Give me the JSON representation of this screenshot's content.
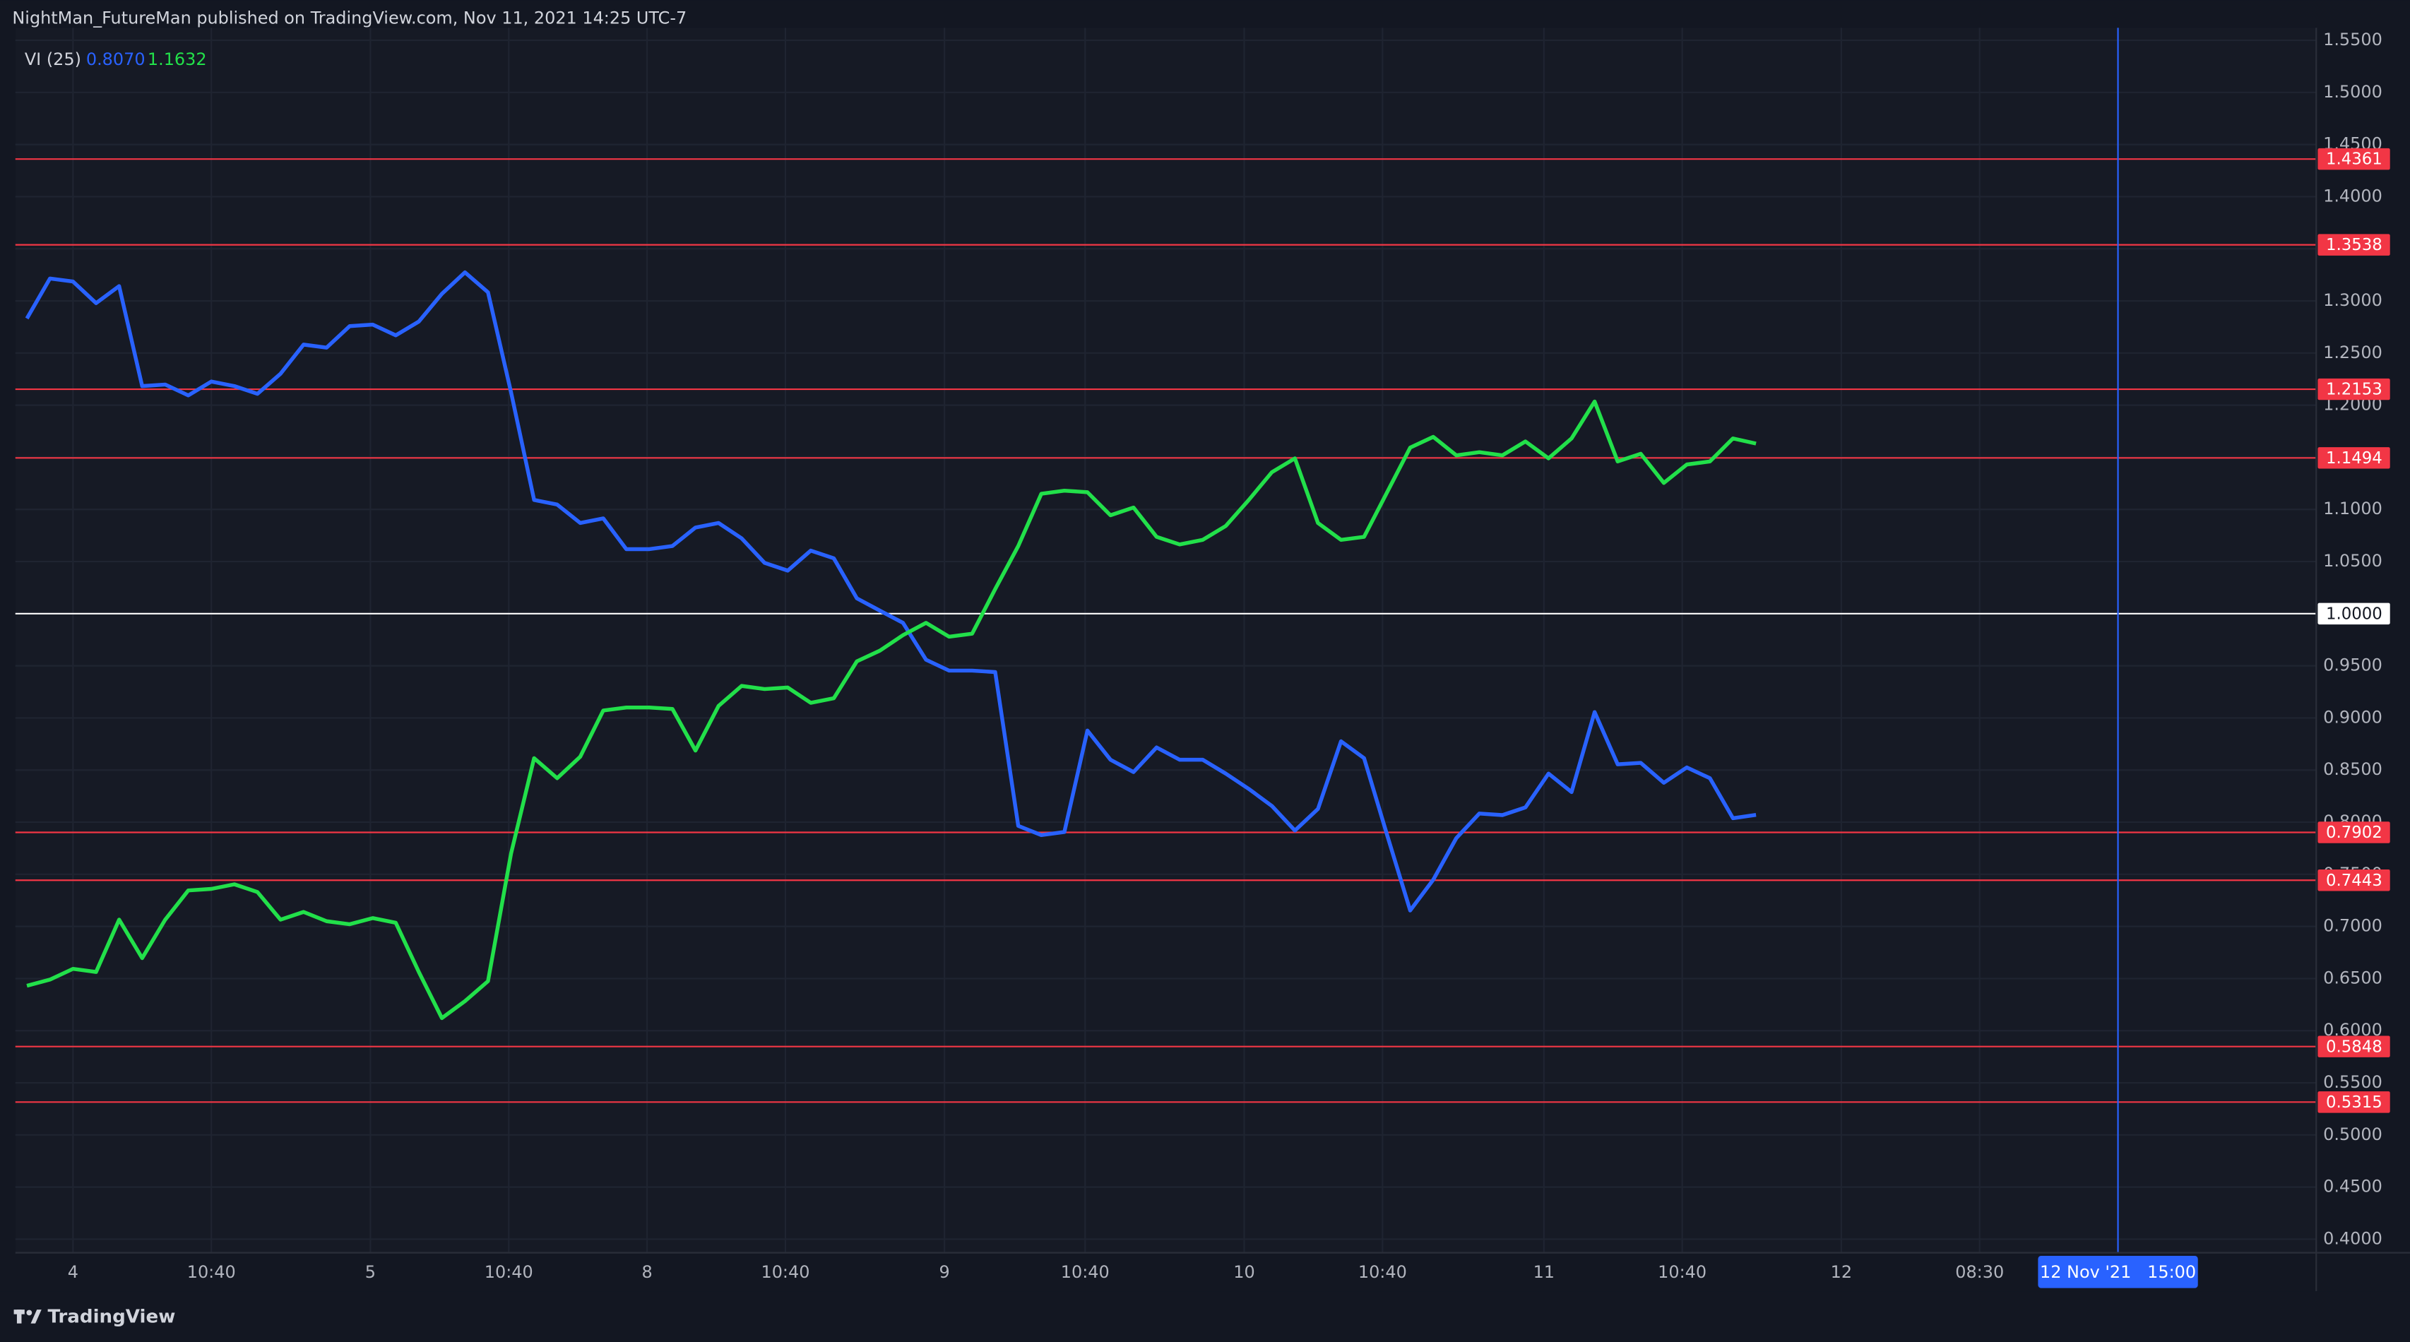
{
  "header": "NightMan_FutureMan published on TradingView.com, Nov 11, 2021 14:25 UTC-7",
  "brand": "TradingView",
  "chart_data": {
    "type": "line",
    "legend_title": "VI (25)",
    "series": [
      {
        "color": "#2962ff",
        "label": "0.8070",
        "values": [
          1.2832,
          1.3215,
          1.3186,
          1.2979,
          1.3142,
          1.2183,
          1.2198,
          1.2094,
          1.2227,
          1.2183,
          1.2109,
          1.2301,
          1.2581,
          1.2552,
          1.2758,
          1.2773,
          1.267,
          1.2802,
          1.3068,
          1.3274,
          1.3083,
          1.2124,
          1.1091,
          1.1047,
          1.087,
          1.0914,
          1.0619,
          1.0619,
          1.0649,
          1.0826,
          1.087,
          1.0723,
          1.0487,
          1.0413,
          1.0605,
          1.0531,
          1.0147,
          1.0029,
          0.9912,
          0.9558,
          0.9454,
          0.9454,
          0.944,
          0.7965,
          0.7876,
          0.7906,
          0.8879,
          0.8599,
          0.8481,
          0.8717,
          0.8599,
          0.8599,
          0.8466,
          0.8319,
          0.8156,
          0.792,
          0.8127,
          0.8776,
          0.8614,
          0.7876,
          0.7153,
          0.7448,
          0.7847,
          0.8083,
          0.8068,
          0.8142,
          0.8466,
          0.8289,
          0.9056,
          0.8555,
          0.8569,
          0.8378,
          0.8525,
          0.8422,
          0.8038,
          0.807
        ]
      },
      {
        "color": "#22e04a",
        "label": "1.1632",
        "values": [
          0.6431,
          0.649,
          0.6593,
          0.6563,
          0.7065,
          0.6696,
          0.7065,
          0.7345,
          0.736,
          0.7404,
          0.733,
          0.7065,
          0.7139,
          0.705,
          0.7021,
          0.708,
          0.7035,
          0.6563,
          0.6121,
          0.6283,
          0.6475,
          0.7699,
          0.8614,
          0.8422,
          0.8628,
          0.9071,
          0.91,
          0.91,
          0.9086,
          0.8687,
          0.9115,
          0.9307,
          0.9277,
          0.9292,
          0.9145,
          0.9189,
          0.9543,
          0.9646,
          0.9794,
          0.9912,
          0.9779,
          0.9808,
          1.0236,
          1.0649,
          1.115,
          1.118,
          1.1165,
          1.0944,
          1.1018,
          1.0737,
          1.0664,
          1.0708,
          1.0841,
          1.1091,
          1.1357,
          1.149,
          1.087,
          1.0708,
          1.0737,
          1.1165,
          1.1593,
          1.1696,
          1.1519,
          1.1549,
          1.1519,
          1.1652,
          1.149,
          1.1681,
          1.2035,
          1.146,
          1.1534,
          1.1254,
          1.1431,
          1.146,
          1.1681,
          1.1632
        ]
      }
    ],
    "xlim": [
      -0.5,
      99.3
    ],
    "xticks": [
      {
        "value": 2,
        "label": "4"
      },
      {
        "value": 8,
        "label": "10:40"
      },
      {
        "value": 14.9,
        "label": "5"
      },
      {
        "value": 20.9,
        "label": "10:40"
      },
      {
        "value": 26.9,
        "label": "8"
      },
      {
        "value": 32.9,
        "label": "10:40"
      },
      {
        "value": 39.8,
        "label": "9"
      },
      {
        "value": 45.9,
        "label": "10:40"
      },
      {
        "value": 52.8,
        "label": "10"
      },
      {
        "value": 58.8,
        "label": "10:40"
      },
      {
        "value": 65.8,
        "label": "11"
      },
      {
        "value": 71.8,
        "label": "10:40"
      },
      {
        "value": 78.7,
        "label": "12"
      },
      {
        "value": 84.7,
        "label": "08:30"
      }
    ],
    "ylim": [
      0.387,
      1.562
    ],
    "yticks": [
      {
        "value": 0.4,
        "label": "0.4000"
      },
      {
        "value": 0.45,
        "label": "0.4500"
      },
      {
        "value": 0.5,
        "label": "0.5000"
      },
      {
        "value": 0.55,
        "label": "0.5500"
      },
      {
        "value": 0.6,
        "label": "0.6000"
      },
      {
        "value": 0.65,
        "label": "0.6500"
      },
      {
        "value": 0.7,
        "label": "0.7000"
      },
      {
        "value": 0.75,
        "label": "0.7500"
      },
      {
        "value": 0.8,
        "label": "0.8000"
      },
      {
        "value": 0.85,
        "label": "0.8500"
      },
      {
        "value": 0.9,
        "label": "0.9000"
      },
      {
        "value": 0.95,
        "label": "0.9500"
      },
      {
        "value": 1,
        "label": "1.0000"
      },
      {
        "value": 1.05,
        "label": "1.0500"
      },
      {
        "value": 1.1,
        "label": "1.1000"
      },
      {
        "value": 1.15,
        "label": "1.1500"
      },
      {
        "value": 1.2,
        "label": "1.2000"
      },
      {
        "value": 1.25,
        "label": "1.2500"
      },
      {
        "value": 1.3,
        "label": "1.3000"
      },
      {
        "value": 1.35,
        "label": "1.3500"
      },
      {
        "value": 1.4,
        "label": "1.4000"
      },
      {
        "value": 1.45,
        "label": "1.4500"
      },
      {
        "value": 1.5,
        "label": "1.5000"
      },
      {
        "value": 1.55,
        "label": "1.5500"
      }
    ],
    "grid": true,
    "levels": [
      1.4361,
      1.3538,
      1.2153,
      1.1494,
      0.7902,
      0.7443,
      0.5848,
      0.5315
    ],
    "level_color": "#f23645",
    "baseline": {
      "value": 1,
      "label": "1.0000"
    },
    "baseline_color": "#ffffff",
    "crosshair": {
      "value": 90.7,
      "label": "12 Nov '21   15:00"
    },
    "crosshair_color": "#2962ff"
  }
}
